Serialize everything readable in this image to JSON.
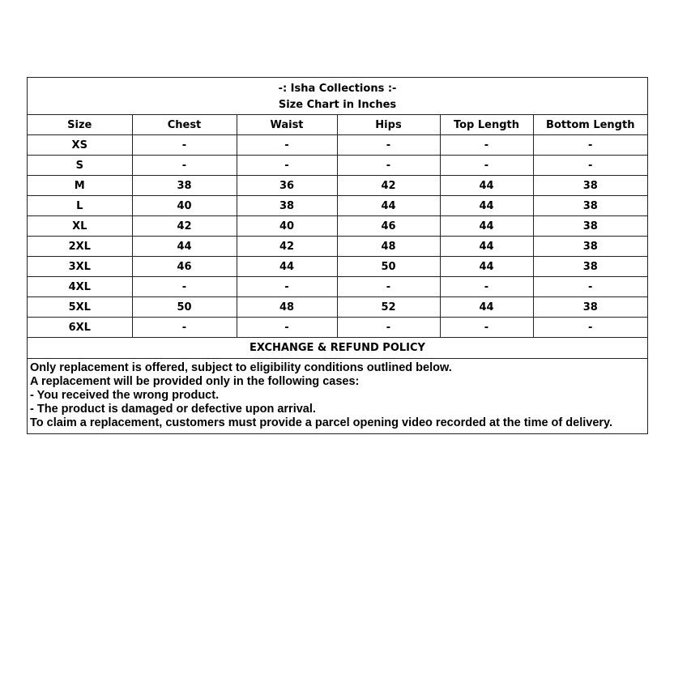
{
  "header": {
    "title": "-: Isha Collections :-",
    "subtitle": "Size Chart in Inches"
  },
  "table": {
    "columns": [
      "Size",
      "Chest",
      "Waist",
      "Hips",
      "Top Length",
      "Bottom Length"
    ],
    "rows": [
      [
        "XS",
        "-",
        "-",
        "-",
        "-",
        "-"
      ],
      [
        "S",
        "-",
        "-",
        "-",
        "-",
        "-"
      ],
      [
        "M",
        "38",
        "36",
        "42",
        "44",
        "38"
      ],
      [
        "L",
        "40",
        "38",
        "44",
        "44",
        "38"
      ],
      [
        "XL",
        "42",
        "40",
        "46",
        "44",
        "38"
      ],
      [
        "2XL",
        "44",
        "42",
        "48",
        "44",
        "38"
      ],
      [
        "3XL",
        "46",
        "44",
        "50",
        "44",
        "38"
      ],
      [
        "4XL",
        "-",
        "-",
        "-",
        "-",
        "-"
      ],
      [
        "5XL",
        "50",
        "48",
        "52",
        "44",
        "38"
      ],
      [
        "6XL",
        "-",
        "-",
        "-",
        "-",
        "-"
      ]
    ]
  },
  "policy": {
    "title": "EXCHANGE & REFUND POLICY",
    "lines": [
      "Only replacement is offered, subject to eligibility conditions outlined below.",
      "A replacement will be provided only in the following cases:",
      "- You received the wrong product.",
      "- The product is damaged or defective upon arrival.",
      "To claim a replacement, customers must provide a parcel opening video recorded at the time of delivery."
    ]
  }
}
